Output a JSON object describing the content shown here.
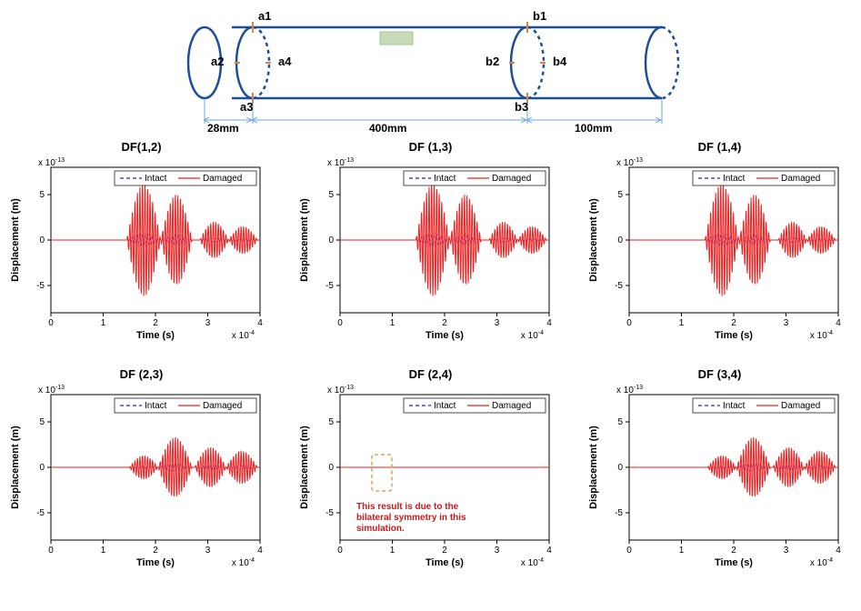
{
  "diagram": {
    "nodes_a": [
      "a1",
      "a2",
      "a3",
      "a4"
    ],
    "nodes_b": [
      "b1",
      "b2",
      "b3",
      "b4"
    ],
    "dims": {
      "left": "28mm",
      "mid": "400mm",
      "right": "100mm"
    },
    "cyl_color": "#1f4e97",
    "cyl_line_w": 2.5,
    "patch_color": "#c7dcb6",
    "dim_arrow_color": "#6faadd",
    "tick_color": "#e0833e"
  },
  "chart_common": {
    "y_exp_label": "x 10",
    "y_exp_sup": "-13",
    "x_exp_label": "x 10",
    "x_exp_sup": "-4",
    "xlabel": "Time (s)",
    "ylabel": "Displacement (m)",
    "legend": {
      "intact": "Intact",
      "damaged": "Damaged",
      "intact_color": "#2222dd",
      "damaged_color": "#ee2020"
    },
    "xlim": [
      0,
      4
    ],
    "xticks": [
      0,
      1,
      2,
      3,
      4
    ],
    "ylim": [
      -8,
      8
    ],
    "yticks": [
      -5,
      0,
      5
    ],
    "bg": "#ffffff",
    "axis_color": "#000000"
  },
  "charts": [
    {
      "title": "DF(1,2)",
      "amp_shape": "big",
      "has_annotation": false
    },
    {
      "title": "DF (1,3)",
      "amp_shape": "big",
      "has_annotation": false
    },
    {
      "title": "DF (1,4)",
      "amp_shape": "big",
      "has_annotation": false
    },
    {
      "title": "DF (2,3)",
      "amp_shape": "small",
      "has_annotation": false
    },
    {
      "title": "DF (2,4)",
      "amp_shape": "flat",
      "has_annotation": true,
      "annotation": "This result is due to the bilateral symmetry in this simulation.",
      "annotation_box_color": "#e6a356"
    },
    {
      "title": "DF (3,4)",
      "amp_shape": "small",
      "has_annotation": false
    }
  ]
}
